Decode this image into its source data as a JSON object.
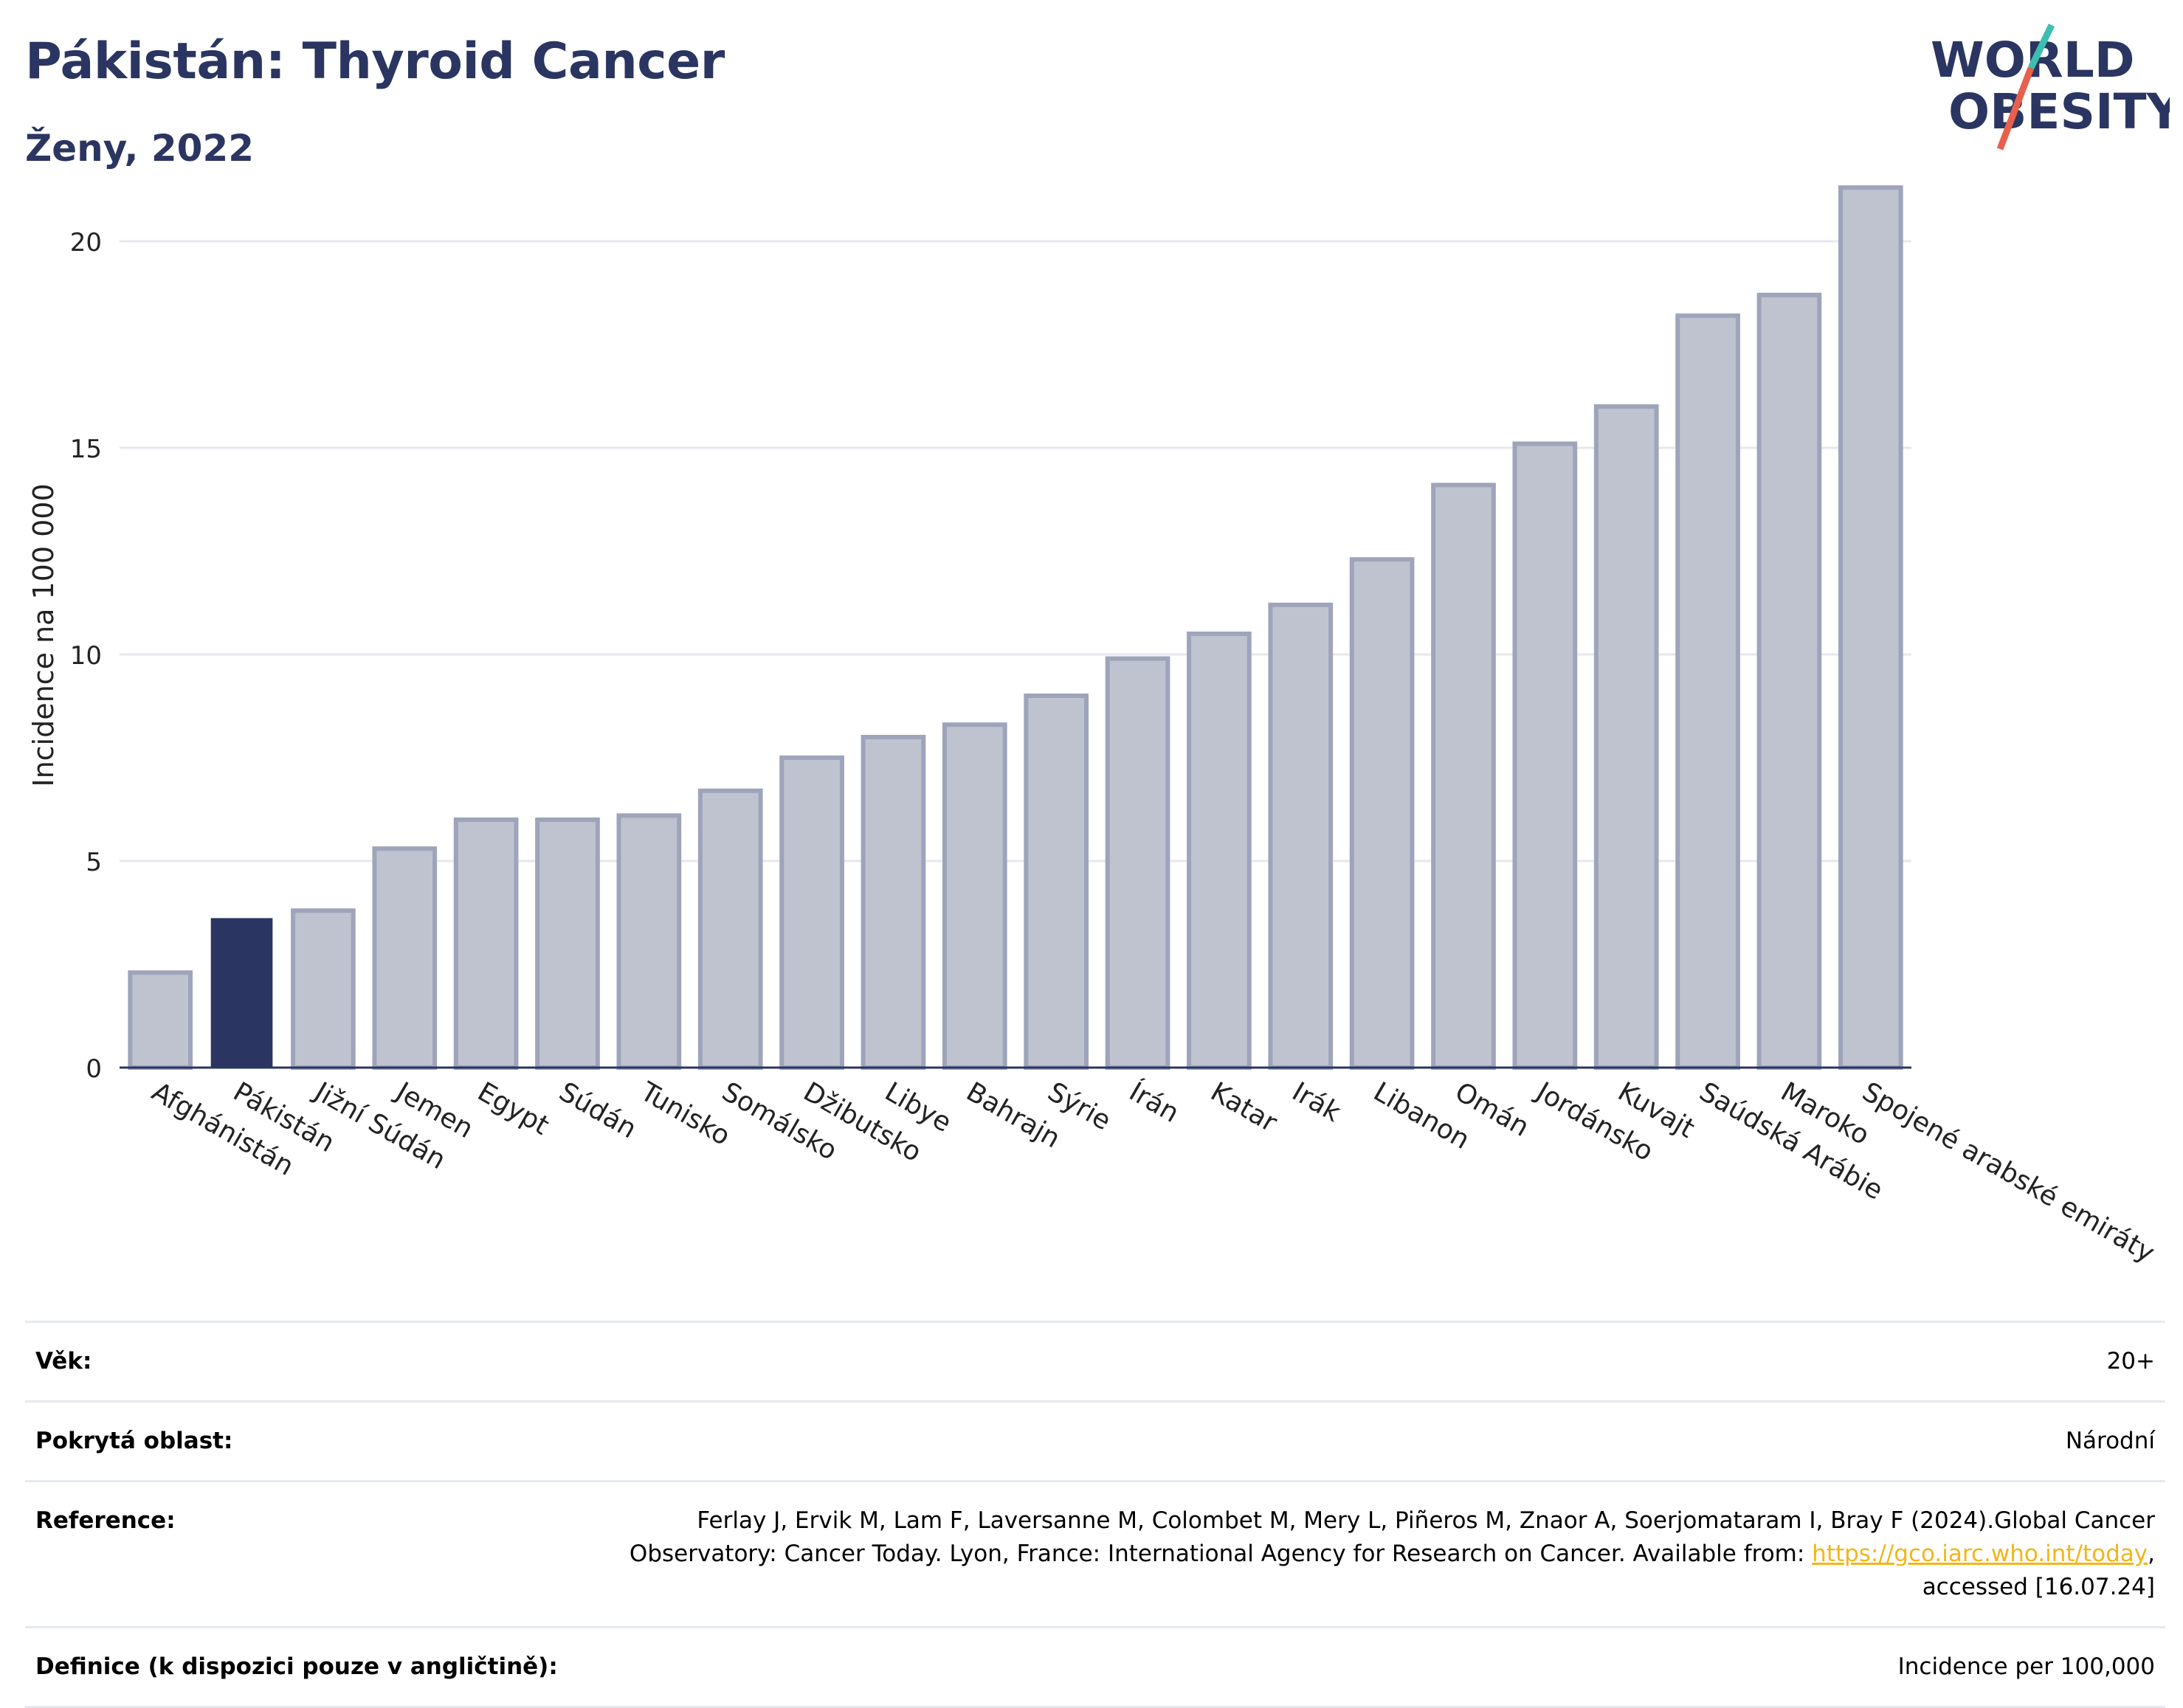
{
  "header": {
    "title": "Pákistán: Thyroid Cancer",
    "subtitle": "Ženy, 2022"
  },
  "logo": {
    "line1": "WORLD",
    "line2": "OBESITY",
    "slash_colors": [
      "#e8604c",
      "#3bbfb0"
    ],
    "text_color": "#2b3561"
  },
  "chart_data": {
    "type": "bar",
    "ylabel": "Incidence na 100 000",
    "xlabel": "",
    "ylim": [
      0,
      22
    ],
    "yticks": [
      0,
      5,
      10,
      15,
      20
    ],
    "grid": true,
    "highlight": "Pákistán",
    "colors": {
      "bar": "#bfc3d0",
      "bar_edge": "#9ea4ba",
      "highlight": "#2b3561"
    },
    "categories": [
      "Afghánistán",
      "Pákistán",
      "Jižní Súdán",
      "Jemen",
      "Egypt",
      "Súdán",
      "Tunisko",
      "Somálsko",
      "Džibutsko",
      "Libye",
      "Bahrajn",
      "Sýrie",
      "Írán",
      "Katar",
      "Irák",
      "Libanon",
      "Omán",
      "Jordánsko",
      "Kuvajt",
      "Saúdská Arábie",
      "Maroko",
      "Spojené arabské emiráty"
    ],
    "values": [
      2.3,
      3.6,
      3.8,
      5.3,
      6.0,
      6.0,
      6.1,
      6.7,
      7.5,
      8.0,
      8.3,
      9.0,
      9.9,
      10.5,
      11.2,
      12.3,
      14.1,
      15.1,
      16.0,
      18.2,
      18.7,
      21.3
    ]
  },
  "meta": {
    "age_label": "Věk:",
    "age_value": "20+",
    "area_label": "Pokrytá oblast:",
    "area_value": "Národní",
    "ref_label": "Reference:",
    "ref_text_before": "Ferlay J, Ervik M, Lam F, Laversanne M, Colombet M, Mery L, Piñeros M, Znaor A, Soerjomataram I, Bray F (2024).Global Cancer Observatory: Cancer Today. Lyon, France: International Agency for Research on Cancer. Available from: ",
    "ref_link": "https://gco.iarc.who.int/today",
    "ref_text_after": ", accessed [16.07.24]",
    "def_label": "Definice (k dispozici pouze v angličtině):",
    "def_value": "Incidence per 100,000"
  }
}
